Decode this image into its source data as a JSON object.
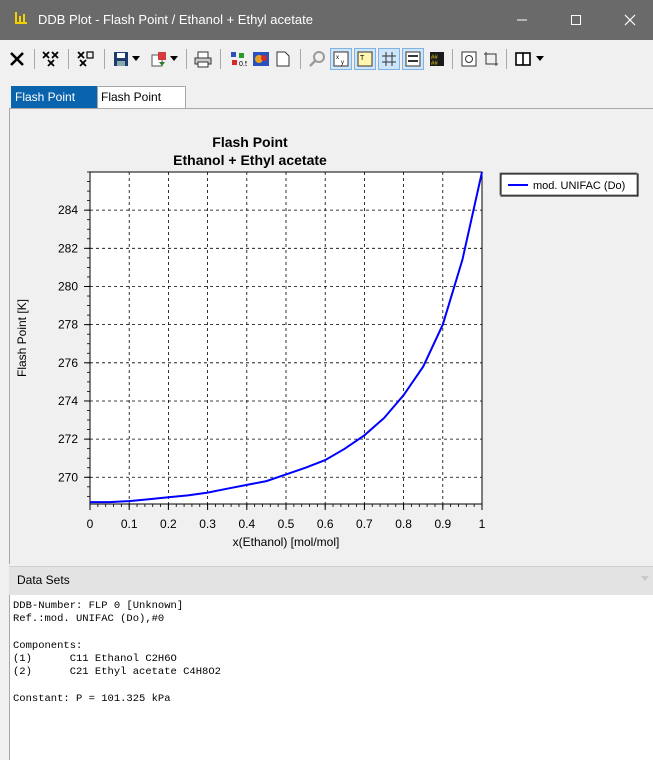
{
  "window": {
    "title": "DDB Plot - Flash Point / Ethanol + Ethyl acetate"
  },
  "tabs": [
    {
      "label": "Flash Point",
      "selected": true
    },
    {
      "label": "Flash Point",
      "selected": false
    }
  ],
  "chart_data": {
    "type": "line",
    "title": "Flash Point",
    "subtitle": "Ethanol + Ethyl acetate",
    "xlabel": "x(Ethanol) [mol/mol]",
    "ylabel": "Flash Point [K]",
    "xlim": [
      0,
      1
    ],
    "ylim": [
      268.6,
      286
    ],
    "xticks": [
      0,
      0.1,
      0.2,
      0.3,
      0.4,
      0.5,
      0.6,
      0.7,
      0.8,
      0.9,
      1
    ],
    "xticklabels": [
      "0",
      "0.1",
      "0.2",
      "0.3",
      "0.4",
      "0.5",
      "0.6",
      "0.7",
      "0.8",
      "0.9",
      "1"
    ],
    "yticks": [
      270,
      272,
      274,
      276,
      278,
      280,
      282,
      284
    ],
    "yticklabels": [
      "270",
      "272",
      "274",
      "276",
      "278",
      "280",
      "282",
      "284"
    ],
    "grid": true,
    "legend_position": "top-right",
    "series": [
      {
        "name": "mod. UNIFAC (Do)",
        "color": "#0000ff",
        "x": [
          0,
          0.05,
          0.1,
          0.15,
          0.2,
          0.25,
          0.3,
          0.35,
          0.4,
          0.45,
          0.5,
          0.55,
          0.6,
          0.65,
          0.7,
          0.75,
          0.8,
          0.85,
          0.9,
          0.95,
          1.0
        ],
        "y": [
          268.7,
          268.7,
          268.75,
          268.85,
          268.95,
          269.05,
          269.2,
          269.4,
          269.6,
          269.8,
          270.15,
          270.5,
          270.9,
          271.5,
          272.2,
          273.1,
          274.3,
          275.8,
          278.0,
          281.4,
          286.0
        ]
      }
    ]
  },
  "datasets": {
    "header": "Data Sets",
    "lines": [
      "DDB-Number: FLP 0 [Unknown]",
      "Ref.:mod. UNIFAC (Do),#0",
      "",
      "Components:",
      "(1)      C11 Ethanol C2H6O",
      "(2)      C21 Ethyl acetate C4H8O2",
      "",
      "Constant: P = 101.325 kPa"
    ]
  }
}
